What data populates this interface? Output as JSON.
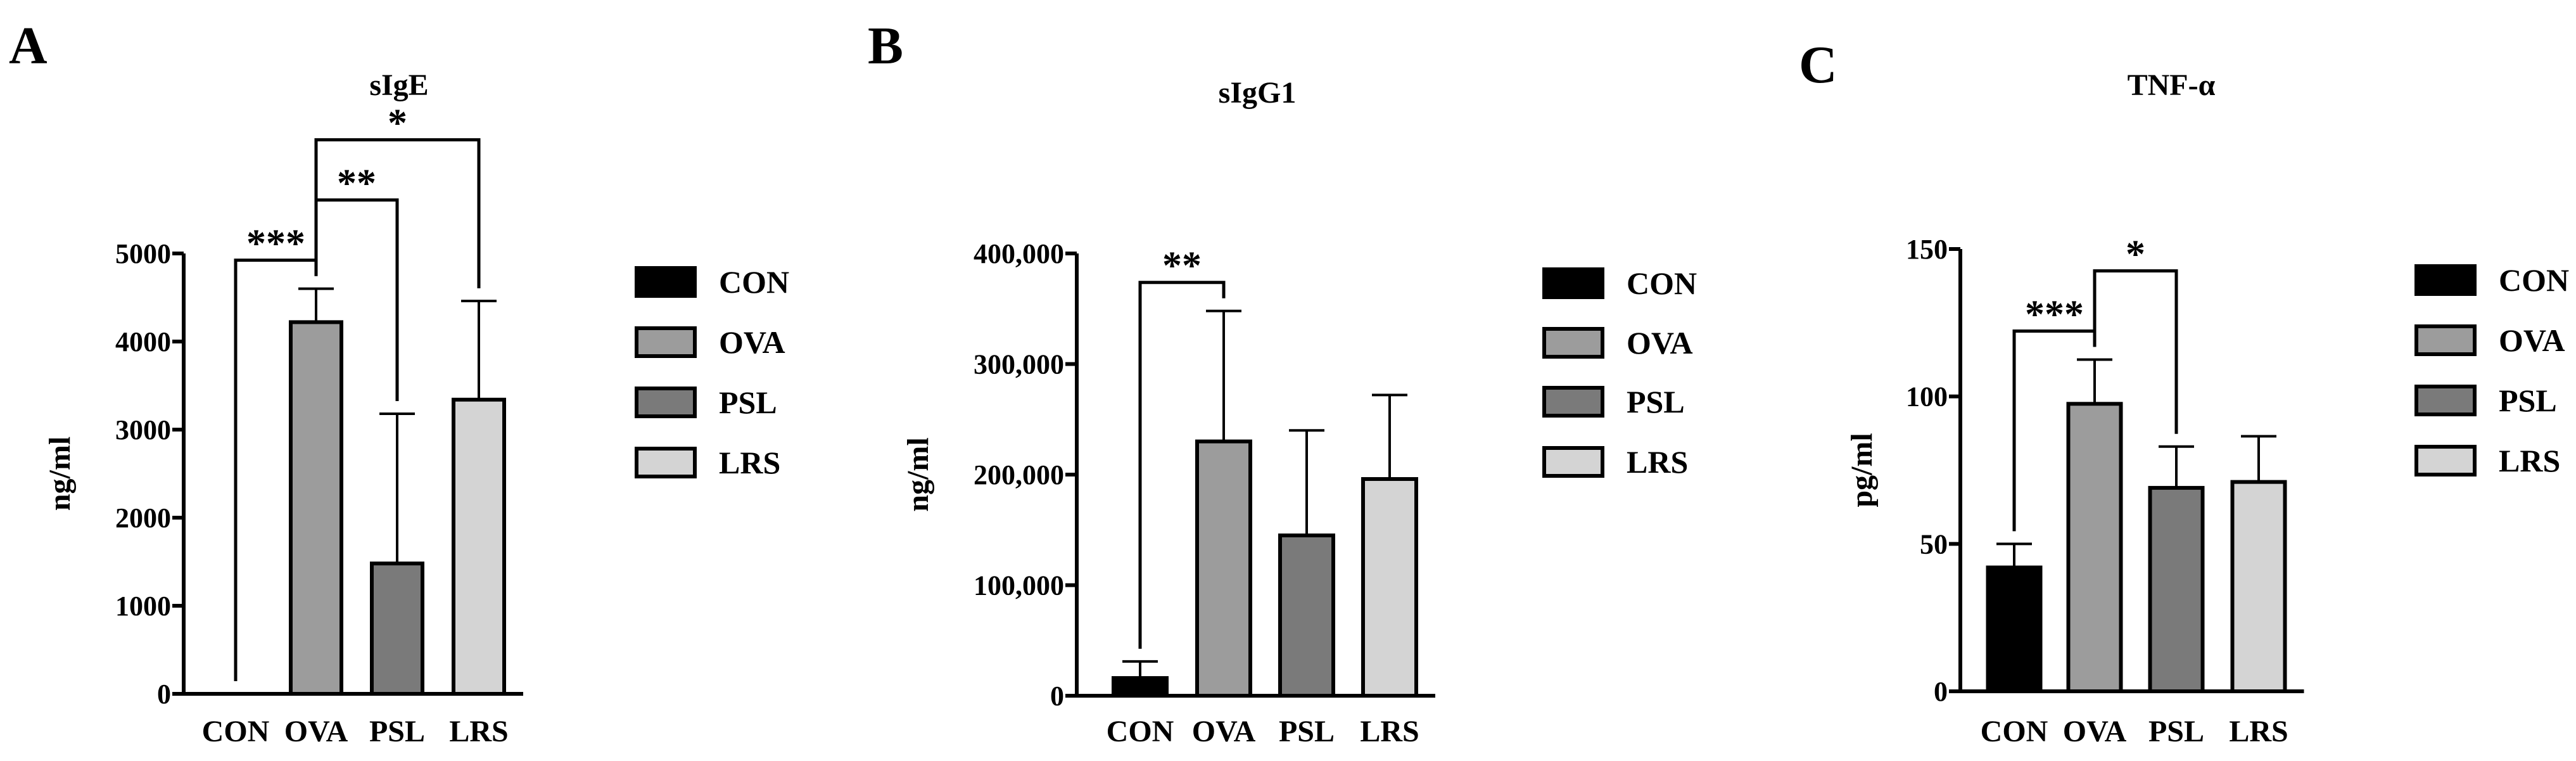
{
  "chart_data": [
    {
      "panel": "A",
      "type": "bar",
      "title": "sIgE",
      "xlabel": "",
      "ylabel": "ng/ml",
      "ylim": [
        0,
        5000
      ],
      "yticks": [
        0,
        1000,
        2000,
        3000,
        4000,
        5000
      ],
      "ytick_labels": [
        "0",
        "1000",
        "2000",
        "3000",
        "4000",
        "5000"
      ],
      "categories": [
        "CON",
        "OVA",
        "PSL",
        "LRS"
      ],
      "values": [
        0,
        4220,
        1480,
        3340
      ],
      "errors": [
        0,
        380,
        1700,
        1120
      ],
      "significance": [
        {
          "from": 0,
          "to": 1,
          "label": "***"
        },
        {
          "from": 1,
          "to": 2,
          "label": "**"
        },
        {
          "from": 1,
          "to": 3,
          "label": "*"
        }
      ],
      "legend": [
        "CON",
        "OVA",
        "PSL",
        "LRS"
      ],
      "legend_position": "right",
      "grid": false
    },
    {
      "panel": "B",
      "type": "bar",
      "title": "sIgG1",
      "xlabel": "",
      "ylabel": "ng/ml",
      "ylim": [
        0,
        400000
      ],
      "yticks": [
        0,
        100000,
        200000,
        300000,
        400000
      ],
      "ytick_labels": [
        "0",
        "100,000",
        "200,000",
        "300,000",
        "400,000"
      ],
      "categories": [
        "CON",
        "OVA",
        "PSL",
        "LRS"
      ],
      "values": [
        16000,
        230000,
        145000,
        196000
      ],
      "errors": [
        15000,
        118000,
        95000,
        76000
      ],
      "significance": [
        {
          "from": 0,
          "to": 1,
          "label": "**"
        }
      ],
      "legend": [
        "CON",
        "OVA",
        "PSL",
        "LRS"
      ],
      "legend_position": "right",
      "grid": false
    },
    {
      "panel": "C",
      "type": "bar",
      "title": "TNF-α",
      "xlabel": "",
      "ylabel": "pg/ml",
      "ylim": [
        0,
        150
      ],
      "yticks": [
        0,
        50,
        100,
        150
      ],
      "ytick_labels": [
        "0",
        "50",
        "100",
        "150"
      ],
      "categories": [
        "CON",
        "OVA",
        "PSL",
        "LRS"
      ],
      "values": [
        42,
        97.5,
        69,
        71
      ],
      "errors": [
        8,
        15,
        14,
        15.5
      ],
      "significance": [
        {
          "from": 0,
          "to": 1,
          "label": "***"
        },
        {
          "from": 1,
          "to": 2,
          "label": "*"
        }
      ],
      "legend": [
        "CON",
        "OVA",
        "PSL",
        "LRS"
      ],
      "legend_position": "right",
      "grid": false
    }
  ],
  "colors": {
    "CON": "#000000",
    "OVA": "#9c9c9c",
    "PSL": "#7a7a7a",
    "LRS": "#d4d4d4",
    "axis": "#000000"
  }
}
